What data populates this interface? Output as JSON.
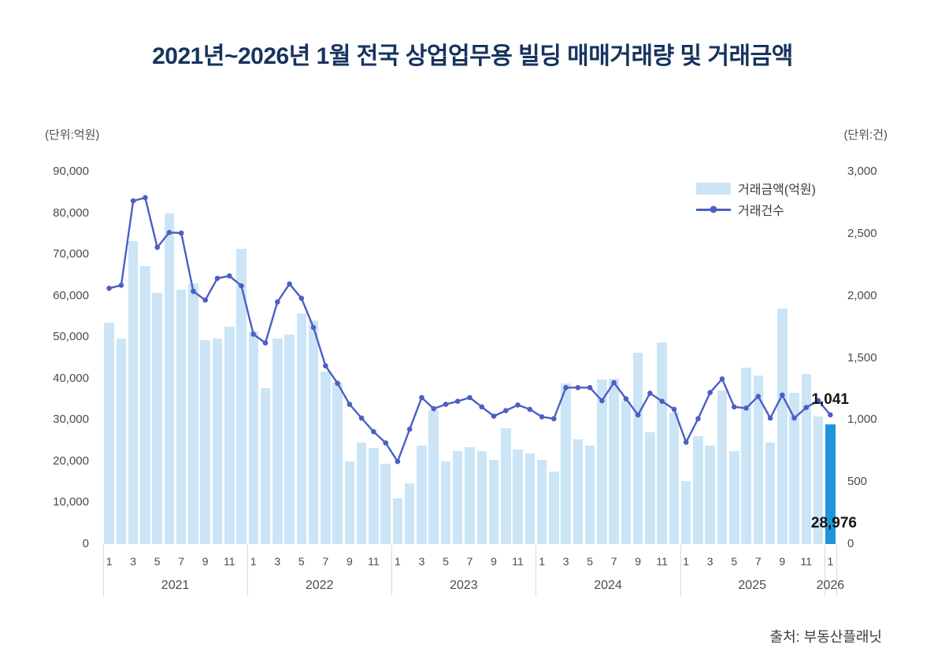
{
  "title": "2021년~2026년 1월 전국 상업업무용 빌딩 매매거래량 및 거래금액",
  "source": "출처: 부동산플래닛",
  "colors": {
    "bar": "#cbe5f7",
    "bar_highlight": "#1e95db",
    "line": "#4c5fc2",
    "title": "#17335f"
  },
  "legend": {
    "bar_label": "거래금액(억원)",
    "line_label": "거래건수"
  },
  "left_axis": {
    "unit": "(단위:억원)",
    "tick_labels": [
      "0",
      "10,000",
      "20,000",
      "30,000",
      "40,000",
      "50,000",
      "60,000",
      "70,000",
      "80,000",
      "90,000"
    ],
    "max": 90000
  },
  "right_axis": {
    "unit": "(단위:건)",
    "tick_labels": [
      "0",
      "500",
      "1,000",
      "1,500",
      "2,000",
      "2,500",
      "3,000"
    ],
    "max": 3000
  },
  "annotations": {
    "last_count": "1,041",
    "last_amount": "28,976"
  },
  "chart_data": {
    "type": "bar+line",
    "bar_series_name": "거래금액(억원)",
    "line_series_name": "거래건수",
    "left_axis_range": [
      0,
      90000
    ],
    "right_axis_range": [
      0,
      3000
    ],
    "x_tick_months_shown": [
      1,
      3,
      5,
      7,
      9,
      11
    ],
    "highlight_last_bar": true,
    "groups": [
      {
        "year": "2021",
        "months": [
          1,
          2,
          3,
          4,
          5,
          6,
          7,
          8,
          9,
          10,
          11,
          12
        ],
        "amounts": [
          53500,
          49700,
          73300,
          67200,
          60800,
          80000,
          61500,
          63000,
          49300,
          49700,
          52500,
          71300
        ],
        "counts": [
          2060,
          2085,
          2765,
          2790,
          2390,
          2510,
          2505,
          2035,
          1965,
          2140,
          2160,
          2080
        ]
      },
      {
        "year": "2022",
        "months": [
          1,
          2,
          3,
          4,
          5,
          6,
          7,
          8,
          9,
          10,
          11,
          12
        ],
        "amounts": [
          51400,
          37600,
          49700,
          50700,
          55700,
          54100,
          41700,
          39100,
          19900,
          24600,
          23200,
          19400
        ],
        "counts": [
          1690,
          1620,
          1950,
          2095,
          1980,
          1745,
          1435,
          1295,
          1125,
          1015,
          905,
          815
        ]
      },
      {
        "year": "2023",
        "months": [
          1,
          2,
          3,
          4,
          5,
          6,
          7,
          8,
          9,
          10,
          11,
          12
        ],
        "amounts": [
          11000,
          14700,
          23700,
          32300,
          20000,
          22400,
          23500,
          22500,
          20400,
          28000,
          22900,
          21900
        ],
        "counts": [
          665,
          925,
          1180,
          1090,
          1125,
          1150,
          1180,
          1105,
          1030,
          1075,
          1120,
          1085
        ]
      },
      {
        "year": "2024",
        "months": [
          1,
          2,
          3,
          4,
          5,
          6,
          7,
          8,
          9,
          10,
          11,
          12
        ],
        "amounts": [
          20400,
          17500,
          38900,
          25400,
          23800,
          39700,
          39900,
          34600,
          46300,
          27100,
          48800,
          31800
        ],
        "counts": [
          1025,
          1010,
          1260,
          1260,
          1260,
          1155,
          1300,
          1170,
          1040,
          1215,
          1150,
          1085
        ]
      },
      {
        "year": "2025",
        "months": [
          1,
          2,
          3,
          4,
          5,
          6,
          7,
          8,
          9,
          10,
          11,
          12
        ],
        "amounts": [
          15200,
          26100,
          23700,
          37200,
          22500,
          42600,
          40800,
          24600,
          56900,
          36500,
          41200,
          30800
        ],
        "counts": [
          820,
          1010,
          1220,
          1330,
          1105,
          1095,
          1190,
          1015,
          1200,
          1015,
          1100,
          1155
        ]
      },
      {
        "year": "2026",
        "months": [
          1
        ],
        "amounts": [
          28976
        ],
        "counts": [
          1041
        ]
      }
    ]
  }
}
